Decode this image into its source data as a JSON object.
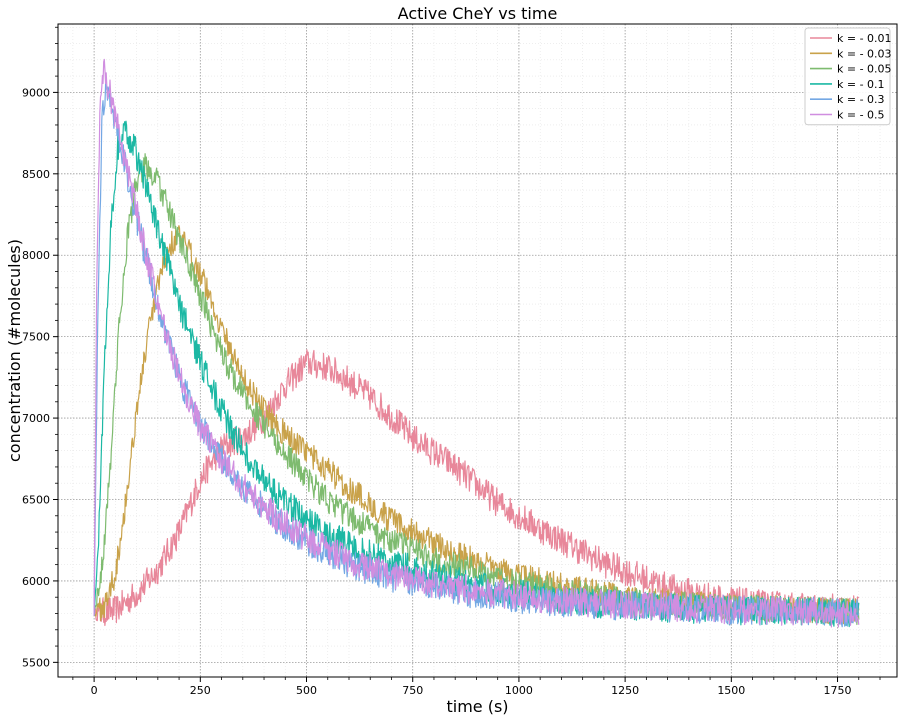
{
  "chart_data": {
    "type": "line",
    "title": "Active CheY vs time",
    "xlabel": "time (s)",
    "ylabel": "concentration (#molecules)",
    "xlim": [
      -85,
      1890
    ],
    "ylim": [
      5410,
      9420
    ],
    "xticks": [
      0,
      250,
      500,
      750,
      1000,
      1250,
      1500,
      1750
    ],
    "yticks": [
      5500,
      6000,
      6500,
      7000,
      7500,
      8000,
      8500,
      9000
    ],
    "grid": true,
    "minor_grid": true,
    "legend_position": "top-right",
    "series": [
      {
        "name": "k = - 0.01",
        "color": "#e8879a",
        "noise": 90,
        "points": [
          [
            0,
            5800
          ],
          [
            50,
            5820
          ],
          [
            100,
            5920
          ],
          [
            150,
            6070
          ],
          [
            200,
            6300
          ],
          [
            250,
            6620
          ],
          [
            300,
            6820
          ],
          [
            350,
            6880
          ],
          [
            400,
            7000
          ],
          [
            450,
            7200
          ],
          [
            500,
            7340
          ],
          [
            550,
            7310
          ],
          [
            600,
            7230
          ],
          [
            650,
            7130
          ],
          [
            700,
            7010
          ],
          [
            750,
            6880
          ],
          [
            800,
            6790
          ],
          [
            850,
            6700
          ],
          [
            900,
            6590
          ],
          [
            950,
            6480
          ],
          [
            1000,
            6400
          ],
          [
            1050,
            6320
          ],
          [
            1100,
            6250
          ],
          [
            1150,
            6180
          ],
          [
            1200,
            6110
          ],
          [
            1250,
            6060
          ],
          [
            1300,
            6010
          ],
          [
            1350,
            5960
          ],
          [
            1400,
            5930
          ],
          [
            1450,
            5900
          ],
          [
            1500,
            5880
          ],
          [
            1550,
            5860
          ],
          [
            1600,
            5850
          ],
          [
            1650,
            5840
          ],
          [
            1700,
            5830
          ],
          [
            1750,
            5830
          ],
          [
            1800,
            5820
          ]
        ]
      },
      {
        "name": "k = - 0.03",
        "color": "#c9a24a",
        "noise": 80,
        "points": [
          [
            0,
            5800
          ],
          [
            25,
            5850
          ],
          [
            50,
            6050
          ],
          [
            75,
            6500
          ],
          [
            100,
            7050
          ],
          [
            125,
            7480
          ],
          [
            150,
            7800
          ],
          [
            175,
            8050
          ],
          [
            200,
            8120
          ],
          [
            250,
            7900
          ],
          [
            300,
            7550
          ],
          [
            350,
            7250
          ],
          [
            400,
            7050
          ],
          [
            450,
            6900
          ],
          [
            500,
            6790
          ],
          [
            550,
            6680
          ],
          [
            600,
            6570
          ],
          [
            650,
            6470
          ],
          [
            700,
            6370
          ],
          [
            750,
            6300
          ],
          [
            800,
            6230
          ],
          [
            850,
            6170
          ],
          [
            900,
            6120
          ],
          [
            950,
            6070
          ],
          [
            1000,
            6030
          ],
          [
            1100,
            5970
          ],
          [
            1200,
            5920
          ],
          [
            1300,
            5880
          ],
          [
            1400,
            5860
          ],
          [
            1500,
            5840
          ],
          [
            1600,
            5830
          ],
          [
            1700,
            5820
          ],
          [
            1800,
            5810
          ]
        ]
      },
      {
        "name": "k = - 0.05",
        "color": "#7ebb6f",
        "noise": 80,
        "points": [
          [
            0,
            5800
          ],
          [
            20,
            6100
          ],
          [
            40,
            6800
          ],
          [
            60,
            7600
          ],
          [
            80,
            8150
          ],
          [
            100,
            8450
          ],
          [
            120,
            8550
          ],
          [
            150,
            8450
          ],
          [
            200,
            8100
          ],
          [
            250,
            7750
          ],
          [
            300,
            7400
          ],
          [
            350,
            7150
          ],
          [
            400,
            6950
          ],
          [
            450,
            6780
          ],
          [
            500,
            6630
          ],
          [
            550,
            6500
          ],
          [
            600,
            6400
          ],
          [
            650,
            6320
          ],
          [
            700,
            6250
          ],
          [
            750,
            6190
          ],
          [
            800,
            6140
          ],
          [
            850,
            6100
          ],
          [
            900,
            6060
          ],
          [
            1000,
            5990
          ],
          [
            1100,
            5940
          ],
          [
            1200,
            5900
          ],
          [
            1300,
            5870
          ],
          [
            1400,
            5850
          ],
          [
            1500,
            5840
          ],
          [
            1600,
            5830
          ],
          [
            1700,
            5820
          ],
          [
            1800,
            5810
          ]
        ]
      },
      {
        "name": "k = - 0.1",
        "color": "#1cb8a4",
        "noise": 90,
        "points": [
          [
            0,
            5800
          ],
          [
            10,
            6200
          ],
          [
            25,
            7400
          ],
          [
            40,
            8200
          ],
          [
            55,
            8650
          ],
          [
            70,
            8750
          ],
          [
            90,
            8700
          ],
          [
            120,
            8450
          ],
          [
            150,
            8150
          ],
          [
            200,
            7700
          ],
          [
            250,
            7350
          ],
          [
            300,
            7050
          ],
          [
            350,
            6800
          ],
          [
            400,
            6620
          ],
          [
            450,
            6480
          ],
          [
            500,
            6380
          ],
          [
            550,
            6290
          ],
          [
            600,
            6220
          ],
          [
            650,
            6160
          ],
          [
            700,
            6110
          ],
          [
            750,
            6070
          ],
          [
            800,
            6030
          ],
          [
            900,
            5970
          ],
          [
            1000,
            5920
          ],
          [
            1100,
            5880
          ],
          [
            1200,
            5860
          ],
          [
            1300,
            5840
          ],
          [
            1400,
            5830
          ],
          [
            1500,
            5820
          ],
          [
            1600,
            5815
          ],
          [
            1700,
            5810
          ],
          [
            1800,
            5805
          ]
        ]
      },
      {
        "name": "k = - 0.3",
        "color": "#74a8e4",
        "noise": 90,
        "points": [
          [
            0,
            5800
          ],
          [
            8,
            7500
          ],
          [
            18,
            8800
          ],
          [
            28,
            9050
          ],
          [
            40,
            8950
          ],
          [
            60,
            8700
          ],
          [
            90,
            8350
          ],
          [
            120,
            8000
          ],
          [
            150,
            7700
          ],
          [
            200,
            7250
          ],
          [
            250,
            6950
          ],
          [
            300,
            6750
          ],
          [
            350,
            6580
          ],
          [
            400,
            6440
          ],
          [
            450,
            6330
          ],
          [
            500,
            6250
          ],
          [
            550,
            6170
          ],
          [
            600,
            6110
          ],
          [
            650,
            6060
          ],
          [
            700,
            6020
          ],
          [
            750,
            5990
          ],
          [
            800,
            5960
          ],
          [
            900,
            5920
          ],
          [
            1000,
            5890
          ],
          [
            1100,
            5870
          ],
          [
            1200,
            5850
          ],
          [
            1300,
            5840
          ],
          [
            1400,
            5830
          ],
          [
            1500,
            5820
          ],
          [
            1600,
            5815
          ],
          [
            1700,
            5810
          ],
          [
            1800,
            5800
          ]
        ]
      },
      {
        "name": "k = - 0.5",
        "color": "#d08ee0",
        "noise": 90,
        "points": [
          [
            0,
            5800
          ],
          [
            6,
            7800
          ],
          [
            14,
            8900
          ],
          [
            22,
            9150
          ],
          [
            32,
            9050
          ],
          [
            50,
            8850
          ],
          [
            80,
            8500
          ],
          [
            110,
            8150
          ],
          [
            150,
            7700
          ],
          [
            200,
            7250
          ],
          [
            250,
            6950
          ],
          [
            300,
            6750
          ],
          [
            350,
            6580
          ],
          [
            400,
            6450
          ],
          [
            450,
            6350
          ],
          [
            500,
            6260
          ],
          [
            550,
            6190
          ],
          [
            600,
            6130
          ],
          [
            650,
            6080
          ],
          [
            700,
            6040
          ],
          [
            750,
            6010
          ],
          [
            800,
            5980
          ],
          [
            900,
            5940
          ],
          [
            1000,
            5910
          ],
          [
            1100,
            5880
          ],
          [
            1200,
            5860
          ],
          [
            1300,
            5845
          ],
          [
            1400,
            5835
          ],
          [
            1500,
            5825
          ],
          [
            1600,
            5815
          ],
          [
            1700,
            5810
          ],
          [
            1800,
            5800
          ]
        ]
      }
    ]
  }
}
